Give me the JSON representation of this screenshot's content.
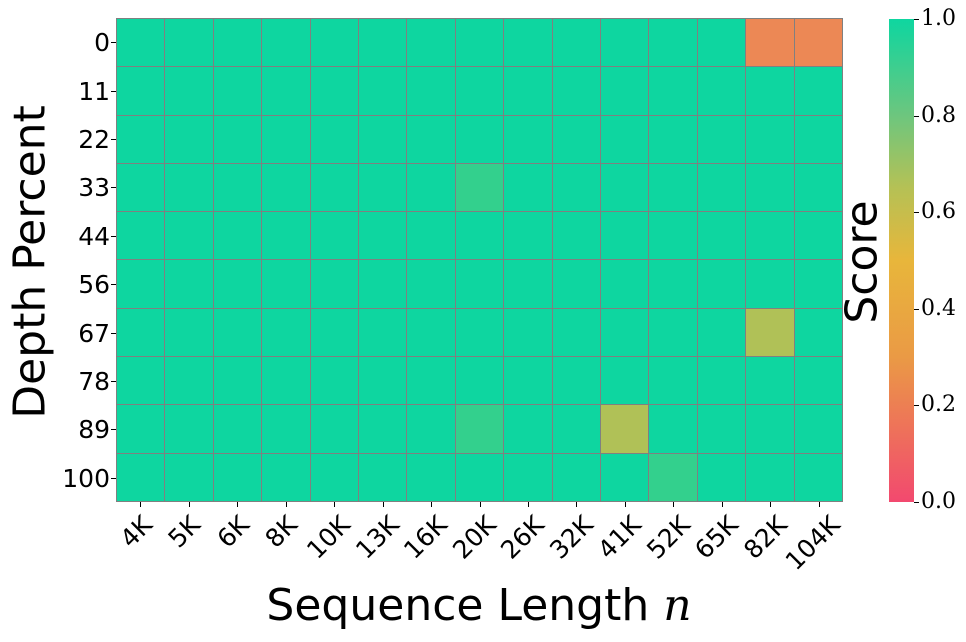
{
  "chart_data": {
    "type": "heatmap",
    "title": "",
    "xlabel": "Sequence Length",
    "xlabel_var": "n",
    "ylabel": "Depth Percent",
    "colorbar_label": "Score",
    "colorbar_ticks": [
      "0.0",
      "0.2",
      "0.4",
      "0.6",
      "0.8",
      "1.0"
    ],
    "vmin": 0.0,
    "vmax": 1.0,
    "colormap": [
      "#f2496f",
      "#ea9a45",
      "#e8b63b",
      "#b5c155",
      "#6dc67e",
      "#0ed6a0"
    ],
    "x": [
      "4K",
      "5K",
      "6K",
      "8K",
      "10K",
      "13K",
      "16K",
      "20K",
      "26K",
      "32K",
      "41K",
      "52K",
      "65K",
      "82K",
      "104K"
    ],
    "y": [
      "0",
      "11",
      "22",
      "33",
      "44",
      "56",
      "67",
      "78",
      "89",
      "100"
    ],
    "values": [
      [
        1,
        1,
        1,
        1,
        1,
        1,
        1,
        1,
        1,
        1,
        1,
        1,
        1,
        0.33,
        0.33
      ],
      [
        1,
        1,
        1,
        1,
        1,
        1,
        1,
        1,
        1,
        1,
        1,
        1,
        1,
        1,
        1
      ],
      [
        1,
        1,
        1,
        1,
        1,
        1,
        1,
        1,
        1,
        1,
        1,
        1,
        1,
        1,
        1
      ],
      [
        1,
        1,
        1,
        1,
        1,
        1,
        1,
        0.9,
        1,
        1,
        1,
        1,
        1,
        1,
        1
      ],
      [
        1,
        1,
        1,
        1,
        1,
        1,
        1,
        1,
        1,
        1,
        1,
        1,
        1,
        1,
        1
      ],
      [
        1,
        1,
        1,
        1,
        1,
        1,
        1,
        1,
        1,
        1,
        1,
        1,
        1,
        1,
        1
      ],
      [
        1,
        1,
        1,
        1,
        1,
        1,
        1,
        1,
        1,
        1,
        1,
        1,
        1,
        0.67,
        1
      ],
      [
        1,
        1,
        1,
        1,
        1,
        1,
        1,
        1,
        1,
        1,
        1,
        1,
        1,
        1,
        1
      ],
      [
        1,
        1,
        1,
        1,
        1,
        1,
        1,
        0.9,
        1,
        1,
        0.67,
        1,
        1,
        1,
        1
      ],
      [
        1,
        1,
        1,
        1,
        1,
        1,
        1,
        1,
        1,
        1,
        1,
        0.9,
        1,
        1,
        1
      ]
    ],
    "grid": true,
    "legend_position": "right (colorbar)"
  }
}
